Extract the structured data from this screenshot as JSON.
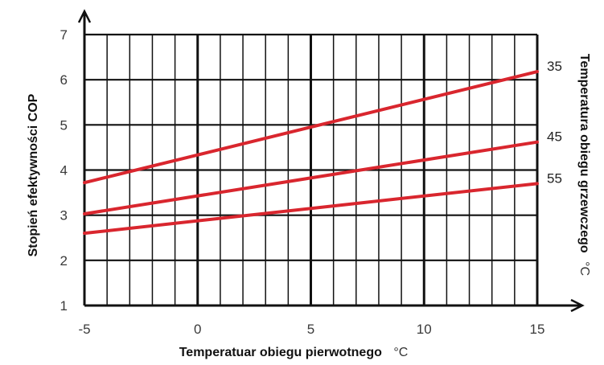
{
  "chart_data": {
    "type": "line",
    "title": "",
    "xlabel": "Temperatuar obiegu pierwotnego",
    "xlabel_unit": "°C",
    "ylabel": "Stopień efektywności COP",
    "legend_title": "Temperatura obiegu grzewczego",
    "legend_title_unit": "°C",
    "xlim": [
      -5,
      15
    ],
    "ylim": [
      1,
      7
    ],
    "x_ticks": [
      -5,
      0,
      5,
      10,
      15
    ],
    "y_ticks": [
      1,
      2,
      3,
      4,
      5,
      6,
      7
    ],
    "grid": true,
    "legend_placement": "right",
    "line_color": "#d9262e",
    "series": [
      {
        "name": "35",
        "x": [
          -5,
          15
        ],
        "y": [
          3.72,
          6.18
        ]
      },
      {
        "name": "45",
        "x": [
          -5,
          15
        ],
        "y": [
          3.03,
          4.62
        ]
      },
      {
        "name": "55",
        "x": [
          -5,
          15
        ],
        "y": [
          2.6,
          3.7
        ]
      }
    ]
  }
}
